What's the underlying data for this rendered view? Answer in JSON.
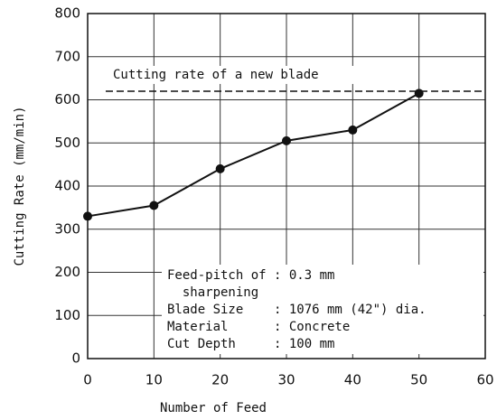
{
  "chart_data": {
    "type": "line",
    "xlabel": "Number of Feed",
    "ylabel": "Cutting Rate (mm/min)",
    "x": [
      0,
      10,
      20,
      30,
      40,
      50
    ],
    "series": [
      {
        "color": "#111111",
        "values": [
          330,
          355,
          440,
          505,
          530,
          615
        ]
      }
    ],
    "reference": {
      "value": 620,
      "label": "Cutting rate of a new blade"
    },
    "annotation": [
      "Feed-pitch of : 0.3 mm",
      "  sharpening",
      "Blade Size    : 1076 mm (42\") dia.",
      "Material      : Concrete",
      "Cut Depth     : 100 mm"
    ],
    "xlim": [
      0,
      60
    ],
    "xticks": [
      0,
      10,
      20,
      30,
      40,
      50,
      60
    ],
    "ylim": [
      0,
      800
    ],
    "yticks": [
      0,
      100,
      200,
      300,
      400,
      500,
      600,
      700,
      800
    ],
    "grid": true
  }
}
